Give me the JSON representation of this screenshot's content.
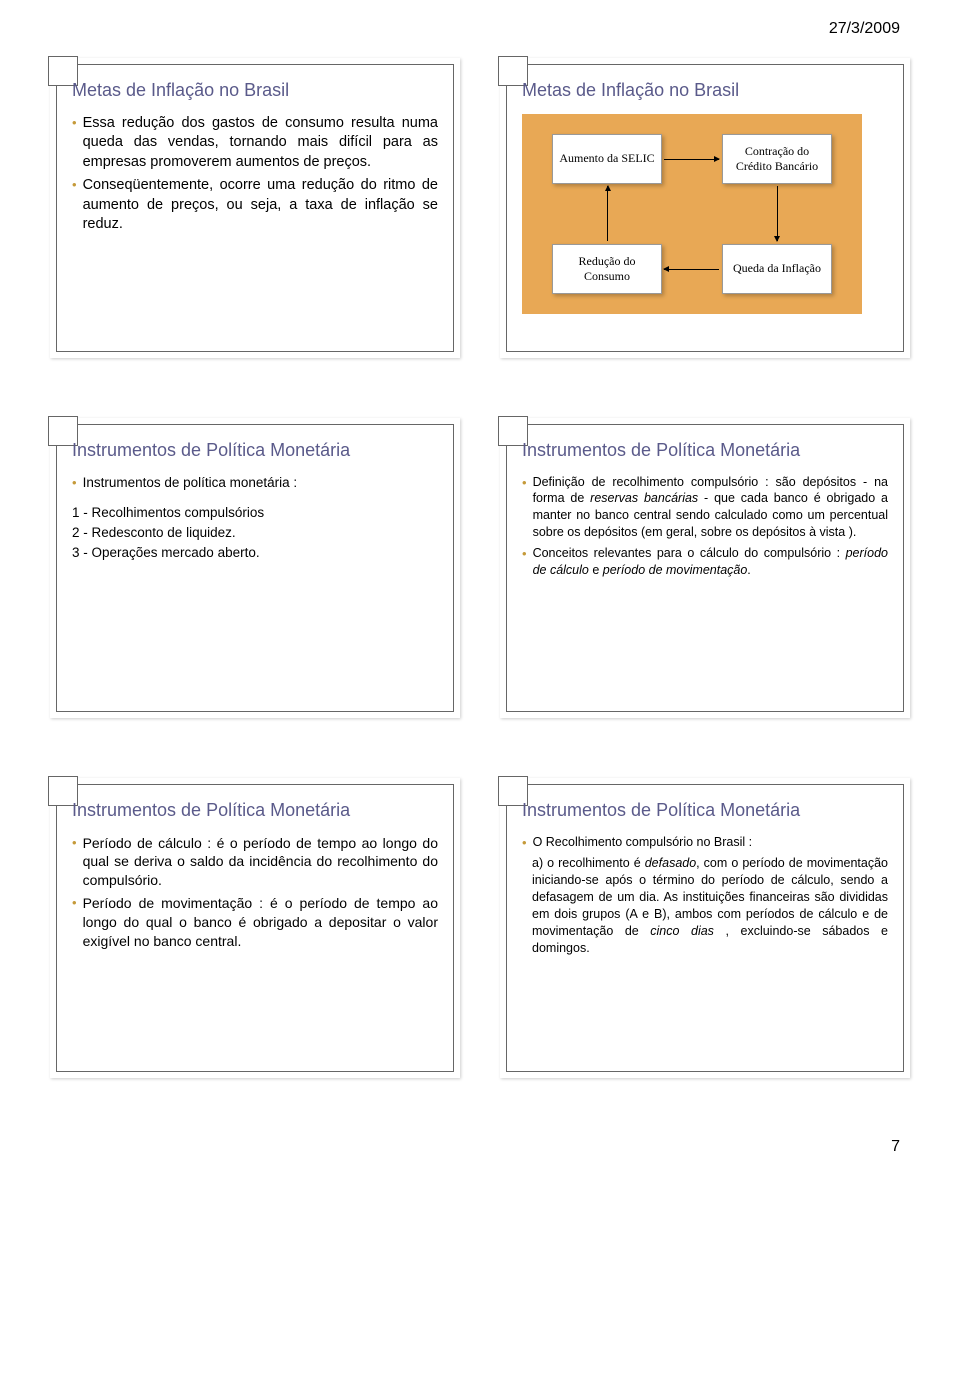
{
  "header": {
    "date": "27/3/2009"
  },
  "footer": {
    "page_num": "7"
  },
  "slides": {
    "s1": {
      "title": "Metas de Inflação no Brasil",
      "bullets": [
        "Essa redução dos gastos de consumo resulta numa queda das vendas, tornando mais difícil para as empresas promoverem aumentos de preços.",
        "Conseqüentemente, ocorre uma redução do ritmo de aumento de preços, ou seja, a taxa de inflação se reduz."
      ]
    },
    "s2": {
      "title": "Metas de Inflação no Brasil",
      "boxes": {
        "a": "Aumento da SELIC",
        "b": "Contração do Crédito Bancário",
        "c": "Redução do Consumo",
        "d": "Queda da Inflação"
      }
    },
    "s3": {
      "title": "Instrumentos de Política Monetária",
      "intro_bullet": "Instrumentos de política monetária :",
      "items": [
        "1 - Recolhimentos compulsórios",
        "2 - Redesconto de liquidez.",
        "3 - Operações mercado aberto."
      ]
    },
    "s4": {
      "title": "Instrumentos de Política Monetária",
      "bullets_html": [
        "Definição de recolhimento compulsório : são depósitos - na forma de <i>reservas bancárias</i> - que cada banco é obrigado a manter no banco central sendo calculado como um percentual sobre os depósitos (em geral, sobre os depósitos à vista ).",
        "Conceitos relevantes para o cálculo do compulsório : <i>período de cálculo</i> e <i>período de movimentação</i>."
      ]
    },
    "s5": {
      "title": "Instrumentos de Política Monetária",
      "bullets": [
        "Período de cálculo : é o período de tempo ao longo do qual se deriva o saldo da incidência do recolhimento do compulsório.",
        "Período de movimentação : é o período de tempo ao longo do qual o banco é obrigado a depositar o valor exigível no banco central."
      ]
    },
    "s6": {
      "title": "Instrumentos de Política Monetária",
      "intro_bullet": "O Recolhimento compulsório no Brasil :",
      "sub_html": "a) o recolhimento é <i>defasado</i>, com o período de movimentação iniciando-se após o término do período de cálculo, sendo a defasagem de um dia. As instituições financeiras são divididas em dois grupos (A e B), ambos com períodos de cálculo e de movimentação de <i>cinco dias</i> , excluindo-se sábados e domingos."
    }
  },
  "colors": {
    "title_color": "#5a5a8a",
    "bullet_marker": "#c59a3a",
    "diagram_bg": "#e8a855"
  }
}
